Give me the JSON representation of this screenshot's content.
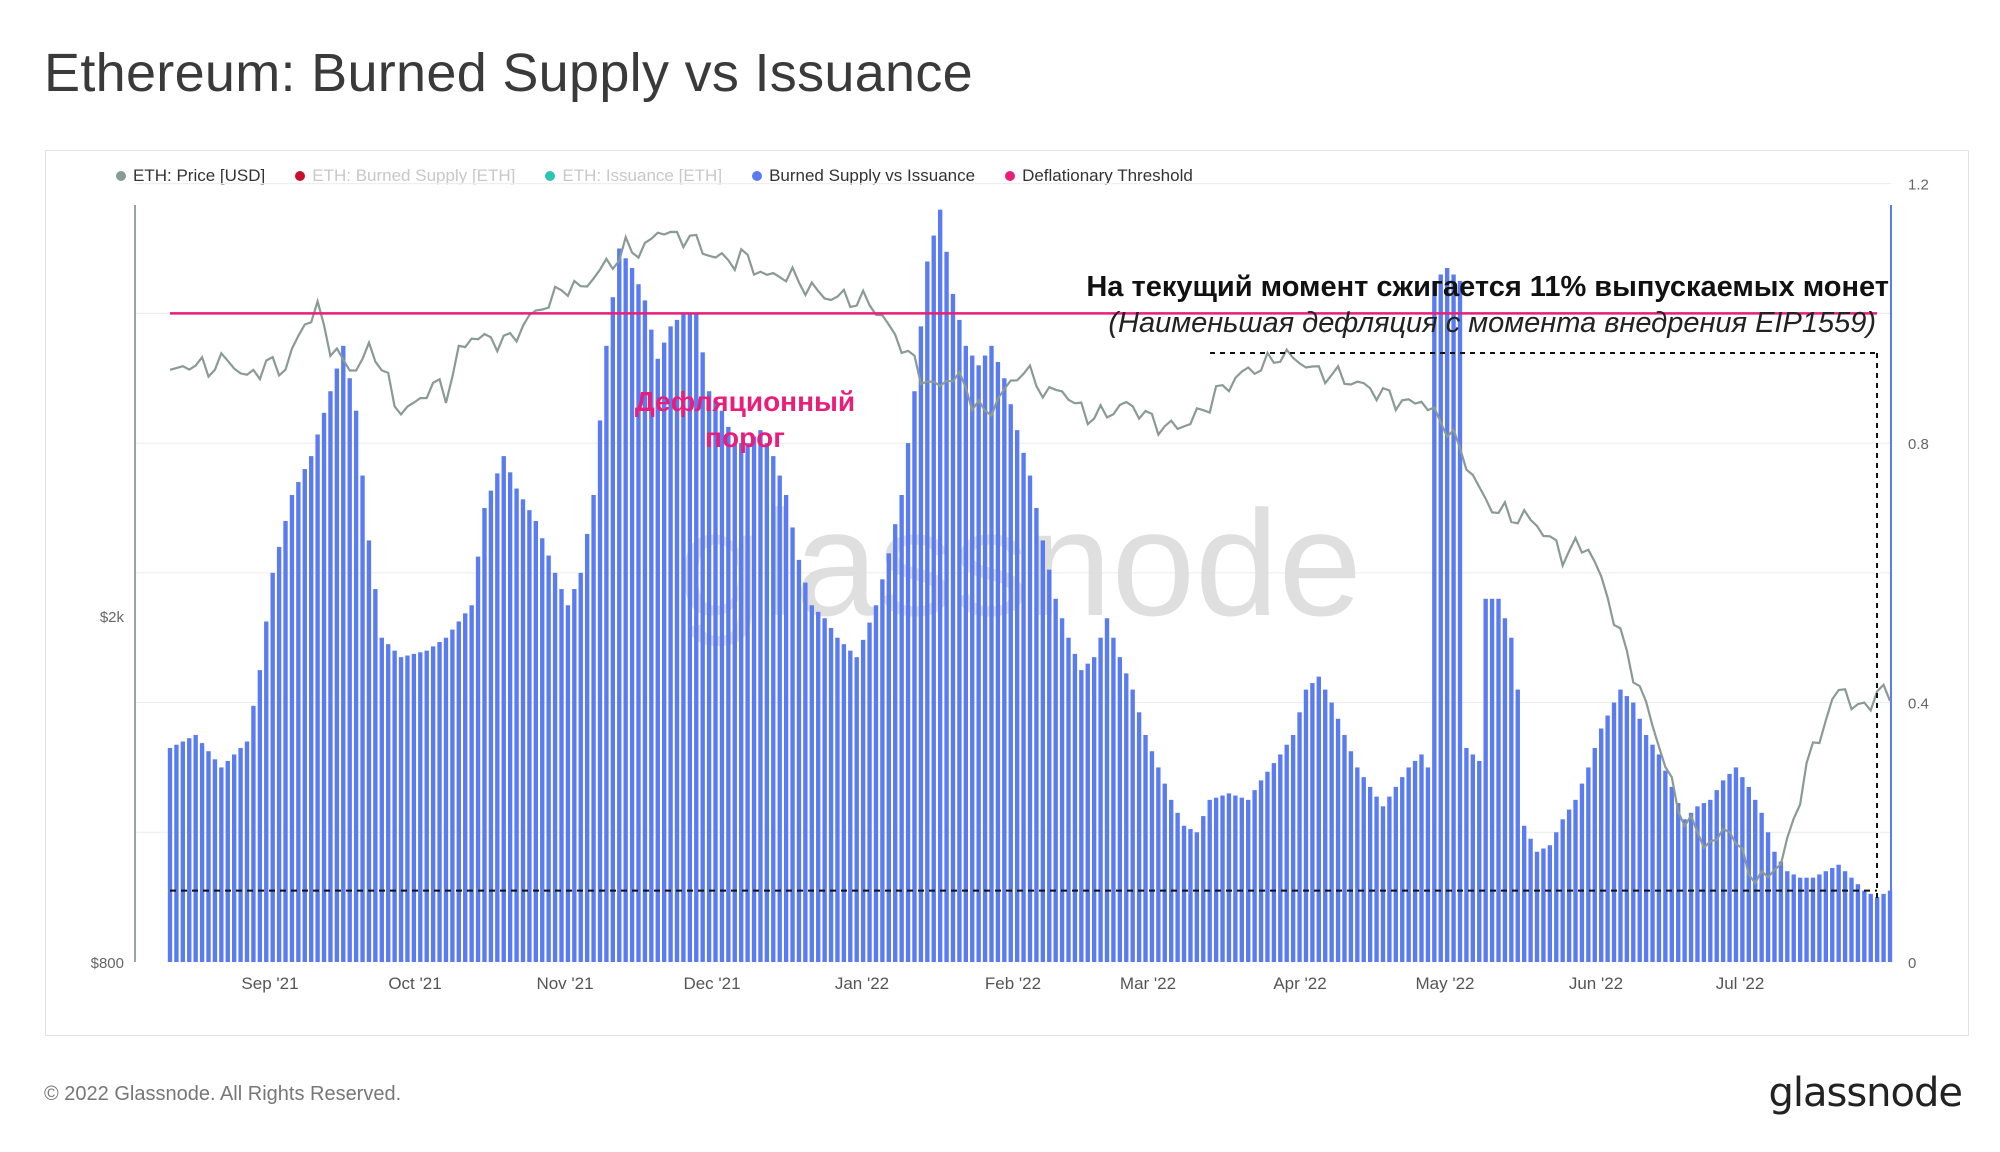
{
  "title": "Ethereum: Burned Supply vs Issuance",
  "legend": [
    {
      "label": "ETH: Price [USD]",
      "color": "#8a9a96",
      "active": true
    },
    {
      "label": "ETH: Burned Supply [ETH]",
      "color": "#c8102e",
      "active": false
    },
    {
      "label": "ETH: Issuance [ETH]",
      "color": "#2ec4b6",
      "active": false
    },
    {
      "label": "Burned Supply vs Issuance",
      "color": "#5b7cf0",
      "active": true
    },
    {
      "label": "Deflationary Threshold",
      "color": "#e91e7a",
      "active": true
    }
  ],
  "annotations": {
    "headline": "На текущий момент сжигается 11% выпускаемых монет",
    "subline": "(Наименьшая дефляция с момента внедрения EIP1559)",
    "threshold_line1": "Дефляционный",
    "threshold_line2": "порог"
  },
  "watermark": "glassnode",
  "footer": "© 2022 Glassnode. All Rights Reserved.",
  "brand": "glassnode",
  "chart_data": {
    "type": "bar",
    "x_ticks": [
      "Sep '21",
      "Oct '21",
      "Nov '21",
      "Dec '21",
      "Jan '22",
      "Feb '22",
      "Mar '22",
      "Apr '22",
      "May '22",
      "Jun '22",
      "Jul '22"
    ],
    "left_axis": {
      "label": "",
      "ticks": [
        "$2k",
        "$800"
      ],
      "scale": "log",
      "range": [
        800,
        5000
      ]
    },
    "right_axis": {
      "label": "",
      "ticks": [
        "0",
        "0.4",
        "0.8",
        "1.2"
      ],
      "range": [
        0,
        1.3
      ]
    },
    "deflationary_threshold": 1.0,
    "current_ratio": 0.11,
    "series": [
      {
        "name": "Burned Supply vs Issuance",
        "color": "#5b7cf0",
        "type": "bar",
        "anchors": [
          [
            0,
            0.33
          ],
          [
            4,
            0.35
          ],
          [
            8,
            0.3
          ],
          [
            12,
            0.34
          ],
          [
            14,
            0.45
          ],
          [
            16,
            0.6
          ],
          [
            19,
            0.72
          ],
          [
            22,
            0.78
          ],
          [
            25,
            0.88
          ],
          [
            27,
            0.95
          ],
          [
            29,
            0.85
          ],
          [
            31,
            0.65
          ],
          [
            33,
            0.5
          ],
          [
            36,
            0.47
          ],
          [
            40,
            0.48
          ],
          [
            43,
            0.5
          ],
          [
            47,
            0.55
          ],
          [
            49,
            0.7
          ],
          [
            52,
            0.78
          ],
          [
            54,
            0.73
          ],
          [
            57,
            0.68
          ],
          [
            60,
            0.6
          ],
          [
            62,
            0.55
          ],
          [
            64,
            0.6
          ],
          [
            66,
            0.72
          ],
          [
            68,
            0.95
          ],
          [
            70,
            1.1
          ],
          [
            72,
            1.07
          ],
          [
            74,
            1.02
          ],
          [
            76,
            0.93
          ],
          [
            78,
            0.98
          ],
          [
            80,
            1.0
          ],
          [
            82,
            1.0
          ],
          [
            84,
            0.88
          ],
          [
            86,
            0.85
          ],
          [
            88,
            0.8
          ],
          [
            90,
            0.8
          ],
          [
            92,
            0.82
          ],
          [
            94,
            0.78
          ],
          [
            96,
            0.72
          ],
          [
            98,
            0.62
          ],
          [
            100,
            0.55
          ],
          [
            102,
            0.53
          ],
          [
            104,
            0.5
          ],
          [
            107,
            0.47
          ],
          [
            110,
            0.55
          ],
          [
            112,
            0.63
          ],
          [
            114,
            0.72
          ],
          [
            116,
            0.88
          ],
          [
            118,
            1.08
          ],
          [
            120,
            1.16
          ],
          [
            122,
            1.03
          ],
          [
            124,
            0.95
          ],
          [
            126,
            0.92
          ],
          [
            128,
            0.95
          ],
          [
            130,
            0.9
          ],
          [
            132,
            0.82
          ],
          [
            134,
            0.75
          ],
          [
            136,
            0.65
          ],
          [
            138,
            0.56
          ],
          [
            140,
            0.5
          ],
          [
            142,
            0.45
          ],
          [
            144,
            0.47
          ],
          [
            146,
            0.53
          ],
          [
            148,
            0.47
          ],
          [
            150,
            0.42
          ],
          [
            152,
            0.35
          ],
          [
            154,
            0.3
          ],
          [
            156,
            0.25
          ],
          [
            158,
            0.21
          ],
          [
            160,
            0.2
          ],
          [
            162,
            0.25
          ],
          [
            165,
            0.26
          ],
          [
            168,
            0.25
          ],
          [
            170,
            0.28
          ],
          [
            173,
            0.32
          ],
          [
            175,
            0.35
          ],
          [
            177,
            0.42
          ],
          [
            179,
            0.44
          ],
          [
            181,
            0.4
          ],
          [
            183,
            0.35
          ],
          [
            185,
            0.3
          ],
          [
            187,
            0.27
          ],
          [
            189,
            0.24
          ],
          [
            191,
            0.27
          ],
          [
            193,
            0.3
          ],
          [
            195,
            0.32
          ],
          [
            196,
            0.3
          ],
          [
            197,
            1.05
          ],
          [
            199,
            1.07
          ],
          [
            201,
            1.05
          ],
          [
            202,
            0.33
          ],
          [
            204,
            0.31
          ],
          [
            205,
            0.56
          ],
          [
            207,
            0.56
          ],
          [
            209,
            0.5
          ],
          [
            210,
            0.42
          ],
          [
            211,
            0.21
          ],
          [
            213,
            0.17
          ],
          [
            215,
            0.18
          ],
          [
            217,
            0.22
          ],
          [
            219,
            0.25
          ],
          [
            221,
            0.3
          ],
          [
            223,
            0.36
          ],
          [
            225,
            0.4
          ],
          [
            226,
            0.42
          ],
          [
            228,
            0.4
          ],
          [
            230,
            0.35
          ],
          [
            232,
            0.32
          ],
          [
            234,
            0.27
          ],
          [
            236,
            0.22
          ],
          [
            238,
            0.24
          ],
          [
            240,
            0.25
          ],
          [
            242,
            0.28
          ],
          [
            244,
            0.3
          ],
          [
            246,
            0.27
          ],
          [
            248,
            0.23
          ],
          [
            250,
            0.17
          ],
          [
            252,
            0.14
          ],
          [
            254,
            0.13
          ],
          [
            256,
            0.13
          ],
          [
            258,
            0.14
          ],
          [
            260,
            0.15
          ],
          [
            262,
            0.13
          ],
          [
            264,
            0.11
          ],
          [
            266,
            0.1
          ],
          [
            268,
            0.11
          ]
        ]
      },
      {
        "name": "ETH: Price [USD]",
        "color": "#8a9a96",
        "type": "line",
        "anchors": [
          [
            0,
            3800
          ],
          [
            3,
            3900
          ],
          [
            6,
            3850
          ],
          [
            9,
            3950
          ],
          [
            12,
            3750
          ],
          [
            15,
            3900
          ],
          [
            18,
            3850
          ],
          [
            21,
            4350
          ],
          [
            23,
            4500
          ],
          [
            25,
            4100
          ],
          [
            27,
            3900
          ],
          [
            29,
            3850
          ],
          [
            31,
            4050
          ],
          [
            33,
            3900
          ],
          [
            35,
            3500
          ],
          [
            37,
            3450
          ],
          [
            39,
            3550
          ],
          [
            41,
            3700
          ],
          [
            43,
            3600
          ],
          [
            45,
            4000
          ],
          [
            47,
            4200
          ],
          [
            50,
            4150
          ],
          [
            53,
            4150
          ],
          [
            56,
            4400
          ],
          [
            59,
            4600
          ],
          [
            62,
            4800
          ],
          [
            64,
            4750
          ],
          [
            67,
            5000
          ],
          [
            69,
            5100
          ],
          [
            71,
            5300
          ],
          [
            73,
            5250
          ],
          [
            75,
            5400
          ],
          [
            77,
            5600
          ],
          [
            79,
            5400
          ],
          [
            81,
            5500
          ],
          [
            83,
            5250
          ],
          [
            85,
            5200
          ],
          [
            87,
            5100
          ],
          [
            89,
            5200
          ],
          [
            91,
            5050
          ],
          [
            93,
            4900
          ],
          [
            95,
            4950
          ],
          [
            97,
            4900
          ],
          [
            99,
            4800
          ],
          [
            101,
            4700
          ],
          [
            103,
            4650
          ],
          [
            105,
            4650
          ],
          [
            107,
            4600
          ],
          [
            109,
            4600
          ],
          [
            111,
            4400
          ],
          [
            113,
            4200
          ],
          [
            115,
            4000
          ],
          [
            117,
            3800
          ],
          [
            119,
            3650
          ],
          [
            121,
            3750
          ],
          [
            123,
            3750
          ],
          [
            125,
            3550
          ],
          [
            127,
            3400
          ],
          [
            129,
            3550
          ],
          [
            131,
            3700
          ],
          [
            133,
            3850
          ],
          [
            135,
            3700
          ],
          [
            137,
            3600
          ],
          [
            139,
            3650
          ],
          [
            141,
            3500
          ],
          [
            143,
            3400
          ],
          [
            145,
            3400
          ],
          [
            147,
            3450
          ],
          [
            149,
            3500
          ],
          [
            151,
            3450
          ],
          [
            153,
            3350
          ],
          [
            155,
            3300
          ],
          [
            157,
            3300
          ],
          [
            159,
            3350
          ],
          [
            161,
            3450
          ],
          [
            163,
            3600
          ],
          [
            165,
            3700
          ],
          [
            167,
            3800
          ],
          [
            169,
            3850
          ],
          [
            171,
            3900
          ],
          [
            173,
            4000
          ],
          [
            175,
            3950
          ],
          [
            177,
            3900
          ],
          [
            179,
            3800
          ],
          [
            181,
            3800
          ],
          [
            183,
            3750
          ],
          [
            185,
            3700
          ],
          [
            187,
            3650
          ],
          [
            189,
            3600
          ],
          [
            191,
            3550
          ],
          [
            193,
            3500
          ],
          [
            195,
            3550
          ],
          [
            197,
            3400
          ],
          [
            199,
            3300
          ],
          [
            201,
            3100
          ],
          [
            203,
            2900
          ],
          [
            205,
            2700
          ],
          [
            207,
            2650
          ],
          [
            209,
            2600
          ],
          [
            211,
            2600
          ],
          [
            213,
            2550
          ],
          [
            215,
            2450
          ],
          [
            217,
            2350
          ],
          [
            219,
            2400
          ],
          [
            221,
            2400
          ],
          [
            223,
            2200
          ],
          [
            225,
            2000
          ],
          [
            227,
            1800
          ],
          [
            229,
            1650
          ],
          [
            231,
            1500
          ],
          [
            233,
            1350
          ],
          [
            235,
            1200
          ],
          [
            237,
            1150
          ],
          [
            239,
            1100
          ],
          [
            241,
            1100
          ],
          [
            243,
            1150
          ],
          [
            245,
            1050
          ],
          [
            247,
            1000
          ],
          [
            249,
            1000
          ],
          [
            251,
            1050
          ],
          [
            253,
            1150
          ],
          [
            255,
            1350
          ],
          [
            257,
            1450
          ],
          [
            259,
            1600
          ],
          [
            261,
            1650
          ],
          [
            263,
            1550
          ],
          [
            265,
            1600
          ],
          [
            267,
            1650
          ],
          [
            268,
            1600
          ]
        ]
      },
      {
        "name": "Deflationary Threshold",
        "color": "#e91e7a",
        "type": "line",
        "value": 1.0
      }
    ]
  }
}
